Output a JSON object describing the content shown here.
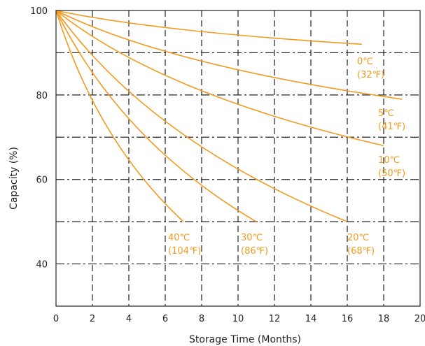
{
  "chart_data": {
    "type": "line",
    "xlabel": "Storage Time (Months)",
    "ylabel": "Capacity (%)",
    "xlim": [
      0,
      20
    ],
    "ylim": [
      30,
      100
    ],
    "x_ticks": [
      "0",
      "2",
      "4",
      "6",
      "8",
      "10",
      "12",
      "14",
      "16",
      "18",
      "20"
    ],
    "y_ticks": [
      "40",
      "60",
      "80",
      "100"
    ],
    "grid": true,
    "line_color": "#f39a1e",
    "series": [
      {
        "label_line1": "0℃",
        "label_line2": "(32℉)",
        "x": [
          0,
          16.8
        ],
        "y": [
          100,
          92
        ]
      },
      {
        "label_line1": "5℃",
        "label_line2": "(41℉)",
        "x": [
          0,
          19
        ],
        "y": [
          100,
          79
        ]
      },
      {
        "label_line1": "10℃",
        "label_line2": "(50℉)",
        "x": [
          0,
          18
        ],
        "y": [
          100,
          68
        ]
      },
      {
        "label_line1": "20℃",
        "label_line2": "(68℉)",
        "x": [
          0,
          16
        ],
        "y": [
          100,
          50
        ]
      },
      {
        "label_line1": "30℃",
        "label_line2": "(86℉)",
        "x": [
          0,
          11
        ],
        "y": [
          100,
          50
        ]
      },
      {
        "label_line1": "40℃",
        "label_line2": "(104℉)",
        "x": [
          0,
          7
        ],
        "y": [
          100,
          50
        ]
      }
    ]
  }
}
